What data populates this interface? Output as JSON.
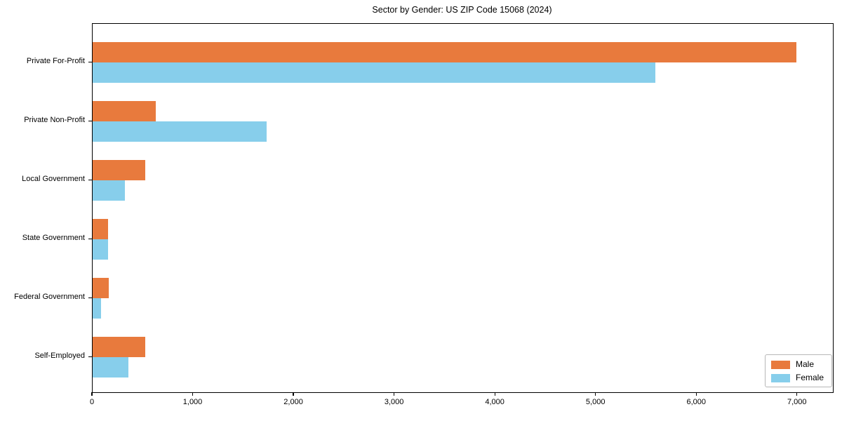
{
  "title": "Sector by Gender: US ZIP Code 15068 (2024)",
  "chart_data": {
    "type": "bar",
    "orientation": "horizontal",
    "title": "Sector by Gender: US ZIP Code 15068 (2024)",
    "categories": [
      "Private For-Profit",
      "Private Non-Profit",
      "Local Government",
      "State Government",
      "Federal Government",
      "Self-Employed"
    ],
    "series": [
      {
        "name": "Male",
        "color": "#e87a3d",
        "values": [
          6990,
          630,
          520,
          155,
          160,
          525
        ]
      },
      {
        "name": "Female",
        "color": "#87ceeb",
        "values": [
          5590,
          1730,
          320,
          150,
          80,
          355
        ]
      }
    ],
    "xlabel": "",
    "ylabel": "",
    "xlim": [
      0,
      7350
    ],
    "xticks": [
      0,
      1000,
      2000,
      3000,
      4000,
      5000,
      6000,
      7000
    ],
    "xtick_labels": [
      "0",
      "1,000",
      "2,000",
      "3,000",
      "4,000",
      "5,000",
      "6,000",
      "7,000"
    ],
    "legend": {
      "position": "lower right"
    },
    "grid": false,
    "background_color": "#ffffff",
    "axis_color": "#000000"
  }
}
